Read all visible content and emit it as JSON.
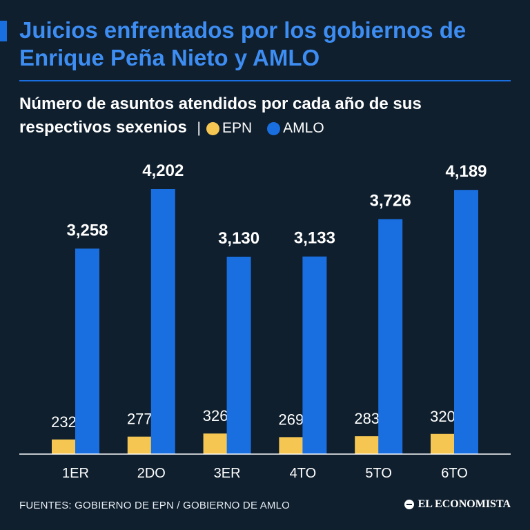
{
  "header": {
    "title": "Juicios enfrentados por los gobiernos de Enrique Peña Nieto y AMLO",
    "subtitle": "Número de asuntos atendidos por cada año de sus respectivos sexenios",
    "separator": "|"
  },
  "colors": {
    "epn": "#f5c752",
    "amlo": "#1a6fe0",
    "title": "#3d8df2",
    "background": "#0f1f2e"
  },
  "chart_data": {
    "type": "bar",
    "title": "Número de asuntos atendidos por cada año de sus respectivos sexenios",
    "categories": [
      "1ER",
      "2DO",
      "3ER",
      "4TO",
      "5TO",
      "6TO"
    ],
    "series": [
      {
        "name": "EPN",
        "values": [
          232,
          277,
          326,
          269,
          283,
          320
        ],
        "labels": [
          "232",
          "277",
          "326",
          "269",
          "283",
          "320"
        ]
      },
      {
        "name": "AMLO",
        "values": [
          3258,
          4202,
          3130,
          3133,
          3726,
          4189
        ],
        "labels": [
          "3,258",
          "4,202",
          "3,130",
          "3,133",
          "3,726",
          "4,189"
        ]
      }
    ],
    "xlabel": "",
    "ylabel": "",
    "ylim": [
      0,
      4202
    ],
    "legend": "top-left"
  },
  "footer": {
    "sources": "FUENTES: GOBIERNO DE EPN / GOBIERNO DE AMLO",
    "brand": "EL ECONOMISTA"
  }
}
